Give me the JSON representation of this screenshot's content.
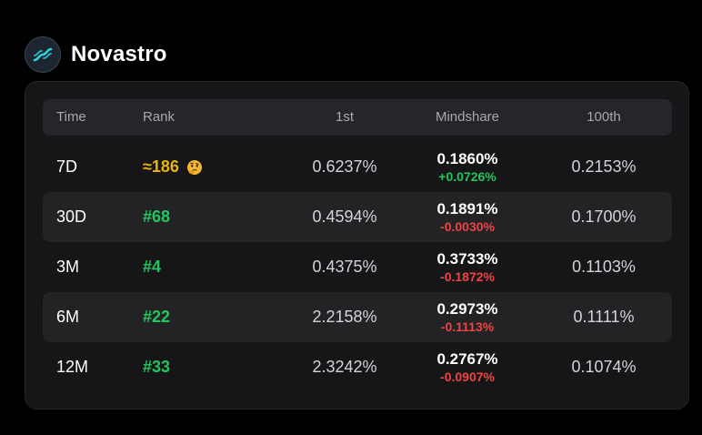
{
  "app": {
    "name": "Novastro",
    "logo_icon": "novastro-wave-logo"
  },
  "table": {
    "headers": {
      "time": "Time",
      "rank": "Rank",
      "first": "1st",
      "mindshare": "Mindshare",
      "hundredth": "100th"
    },
    "rows": [
      {
        "time": "7D",
        "rank": "≈186",
        "rank_style": "approx",
        "rank_icon": "thinking-face-emoji",
        "first": "0.6237%",
        "mindshare": "0.1860%",
        "change": "+0.0726%",
        "change_dir": "up",
        "hundredth": "0.2153%"
      },
      {
        "time": "30D",
        "rank": "#68",
        "rank_style": "ranked",
        "first": "0.4594%",
        "mindshare": "0.1891%",
        "change": "-0.0030%",
        "change_dir": "down",
        "hundredth": "0.1700%"
      },
      {
        "time": "3M",
        "rank": "#4",
        "rank_style": "ranked",
        "first": "0.4375%",
        "mindshare": "0.3733%",
        "change": "-0.1872%",
        "change_dir": "down",
        "hundredth": "0.1103%"
      },
      {
        "time": "6M",
        "rank": "#22",
        "rank_style": "ranked",
        "first": "2.2158%",
        "mindshare": "0.2973%",
        "change": "-0.1113%",
        "change_dir": "down",
        "hundredth": "0.1111%"
      },
      {
        "time": "12M",
        "rank": "#33",
        "rank_style": "ranked",
        "first": "2.3242%",
        "mindshare": "0.2767%",
        "change": "-0.0907%",
        "change_dir": "down",
        "hundredth": "0.1074%"
      }
    ]
  },
  "colors": {
    "background": "#000000",
    "card": "#161618",
    "header_row": "#26262a",
    "positive": "#22c55e",
    "negative": "#ef4444",
    "approx_rank": "#eab308"
  }
}
